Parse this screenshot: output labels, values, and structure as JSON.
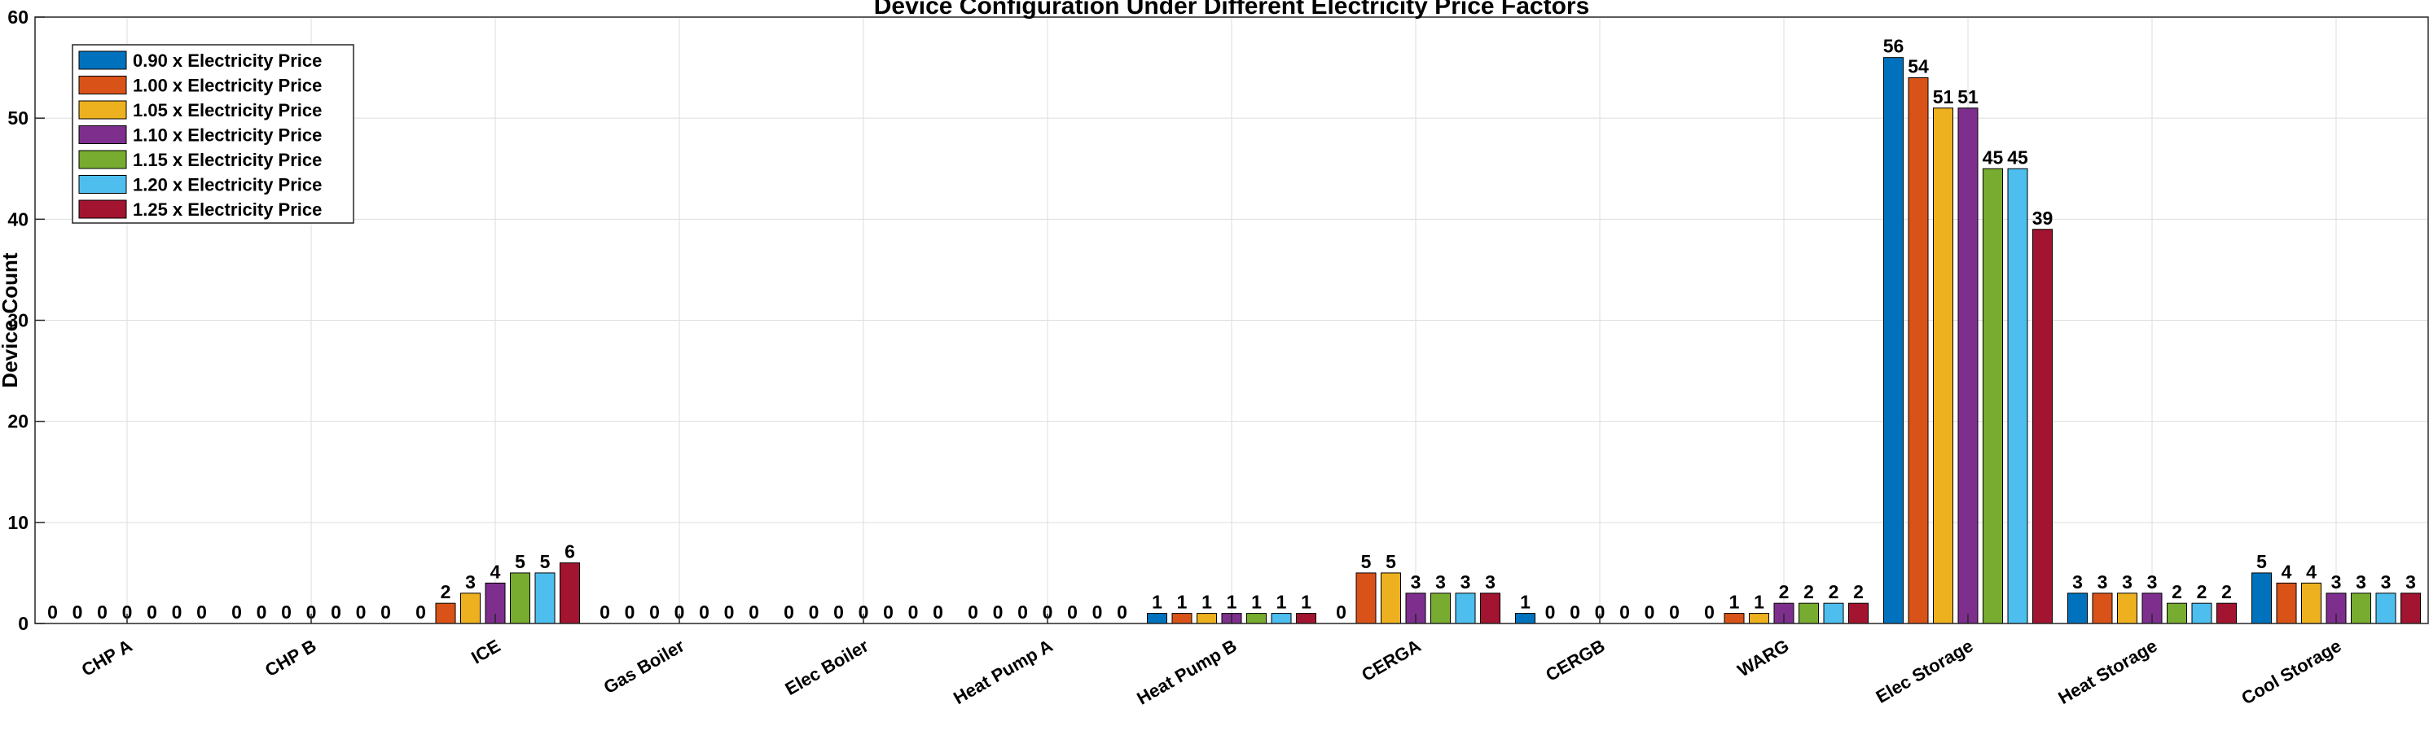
{
  "chart_data": {
    "type": "bar",
    "title": "Device Configuration Under Different Electricity Price Factors",
    "xlabel": "",
    "ylabel": "Device Count",
    "ylim": [
      0,
      60
    ],
    "yticks": [
      0,
      10,
      20,
      30,
      40,
      50,
      60
    ],
    "grid": true,
    "legend_position": "top-left",
    "categories": [
      "CHP A",
      "CHP B",
      "ICE",
      "Gas Boiler",
      "Elec Boiler",
      "Heat Pump A",
      "Heat Pump B",
      "CERGA",
      "CERGB",
      "WARG",
      "Elec Storage",
      "Heat Storage",
      "Cool Storage"
    ],
    "series": [
      {
        "name": "0.90 x Electricity Price",
        "color": "#0072BD",
        "values": [
          0,
          0,
          0,
          0,
          0,
          0,
          1,
          0,
          1,
          0,
          56,
          3,
          5
        ]
      },
      {
        "name": "1.00 x Electricity Price",
        "color": "#D95319",
        "values": [
          0,
          0,
          2,
          0,
          0,
          0,
          1,
          5,
          0,
          1,
          54,
          3,
          4
        ]
      },
      {
        "name": "1.05 x Electricity Price",
        "color": "#EDB120",
        "values": [
          0,
          0,
          3,
          0,
          0,
          0,
          1,
          5,
          0,
          1,
          51,
          3,
          4
        ]
      },
      {
        "name": "1.10 x Electricity Price",
        "color": "#7E2F8E",
        "values": [
          0,
          0,
          4,
          0,
          0,
          0,
          1,
          3,
          0,
          2,
          51,
          3,
          3
        ]
      },
      {
        "name": "1.15 x Electricity Price",
        "color": "#77AC30",
        "values": [
          0,
          0,
          5,
          0,
          0,
          0,
          1,
          3,
          0,
          2,
          45,
          2,
          3
        ]
      },
      {
        "name": "1.20 x Electricity Price",
        "color": "#4DBEEE",
        "values": [
          0,
          0,
          5,
          0,
          0,
          0,
          1,
          3,
          0,
          2,
          45,
          2,
          3
        ]
      },
      {
        "name": "1.25 x Electricity Price",
        "color": "#A2142F",
        "values": [
          0,
          0,
          6,
          0,
          0,
          0,
          1,
          3,
          0,
          2,
          39,
          2,
          3
        ]
      }
    ]
  }
}
